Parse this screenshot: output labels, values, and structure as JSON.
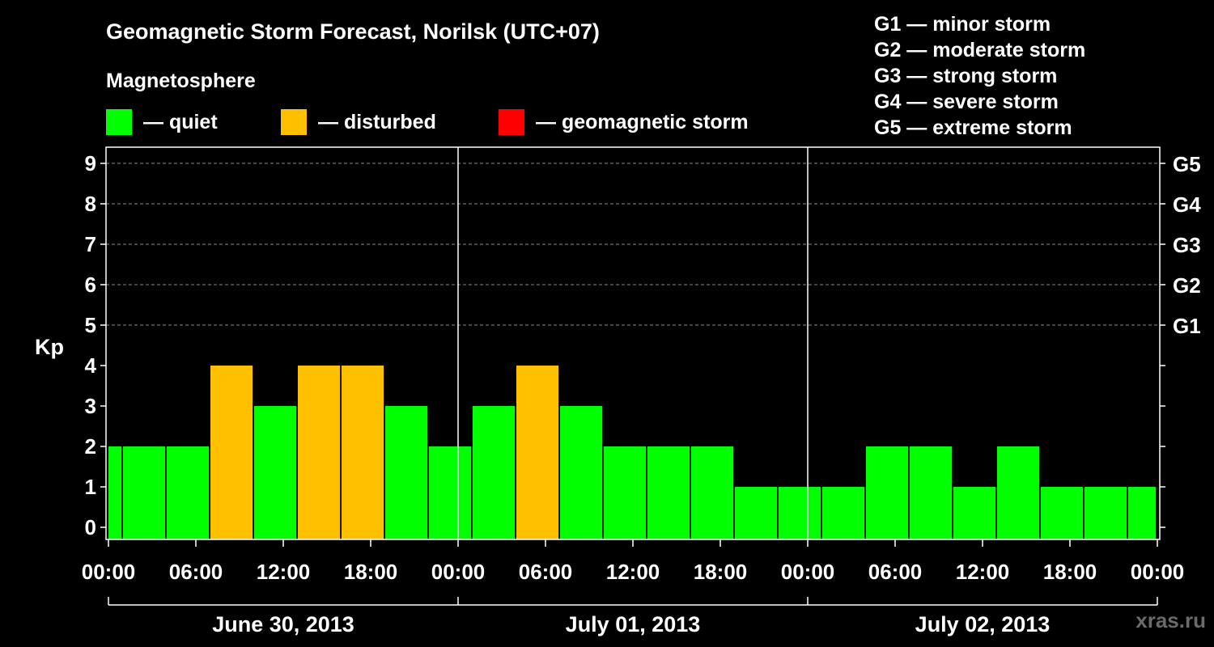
{
  "title": "Geomagnetic Storm Forecast, Norilsk (UTC+07)",
  "subtitle": "Magnetosphere",
  "legend": [
    {
      "label": "— quiet",
      "color": "#00ff00"
    },
    {
      "label": "— disturbed",
      "color": "#ffc000"
    },
    {
      "label": "— geomagnetic storm",
      "color": "#ff0000"
    }
  ],
  "g_scale": [
    "G1 — minor storm",
    "G2 — moderate storm",
    "G3 — strong storm",
    "G4 — severe storm",
    "G5 — extreme storm"
  ],
  "watermark": "xras.ru",
  "chart_data": {
    "type": "bar",
    "ylabel": "Kp",
    "ylim": [
      -0.3,
      9.4
    ],
    "yticks": [
      0,
      1,
      2,
      3,
      4,
      5,
      6,
      7,
      8,
      9
    ],
    "right_ticks": [
      {
        "value": 5,
        "label": "G1"
      },
      {
        "value": 6,
        "label": "G2"
      },
      {
        "value": 7,
        "label": "G3"
      },
      {
        "value": 8,
        "label": "G4"
      },
      {
        "value": 9,
        "label": "G5"
      }
    ],
    "x_range_hours": [
      0,
      72
    ],
    "xtick_labels": [
      "00:00",
      "06:00",
      "12:00",
      "18:00",
      "00:00",
      "06:00",
      "12:00",
      "18:00",
      "00:00",
      "06:00",
      "12:00",
      "18:00",
      "00:00"
    ],
    "dates": [
      "June 30, 2013",
      "July 01, 2013",
      "July 02, 2013"
    ],
    "grid": "dashed horizontal",
    "bars": [
      {
        "start": 0,
        "end": 0.9,
        "value": 2,
        "status": "quiet"
      },
      {
        "start": 1,
        "end": 3.9,
        "value": 2,
        "status": "quiet"
      },
      {
        "start": 4,
        "end": 6.9,
        "value": 2,
        "status": "quiet"
      },
      {
        "start": 7,
        "end": 9.9,
        "value": 4,
        "status": "disturbed"
      },
      {
        "start": 10,
        "end": 12.9,
        "value": 3,
        "status": "quiet"
      },
      {
        "start": 13,
        "end": 15.9,
        "value": 4,
        "status": "disturbed"
      },
      {
        "start": 16,
        "end": 18.9,
        "value": 4,
        "status": "disturbed"
      },
      {
        "start": 19,
        "end": 21.9,
        "value": 3,
        "status": "quiet"
      },
      {
        "start": 22,
        "end": 24.9,
        "value": 2,
        "status": "quiet"
      },
      {
        "start": 25,
        "end": 27.9,
        "value": 3,
        "status": "quiet"
      },
      {
        "start": 28,
        "end": 30.9,
        "value": 4,
        "status": "disturbed"
      },
      {
        "start": 31,
        "end": 33.9,
        "value": 3,
        "status": "quiet"
      },
      {
        "start": 34,
        "end": 36.9,
        "value": 2,
        "status": "quiet"
      },
      {
        "start": 37,
        "end": 39.9,
        "value": 2,
        "status": "quiet"
      },
      {
        "start": 40,
        "end": 42.9,
        "value": 2,
        "status": "quiet"
      },
      {
        "start": 43,
        "end": 45.9,
        "value": 1,
        "status": "quiet"
      },
      {
        "start": 46,
        "end": 48.9,
        "value": 1,
        "status": "quiet"
      },
      {
        "start": 49,
        "end": 51.9,
        "value": 1,
        "status": "quiet"
      },
      {
        "start": 52,
        "end": 54.9,
        "value": 2,
        "status": "quiet"
      },
      {
        "start": 55,
        "end": 57.9,
        "value": 2,
        "status": "quiet"
      },
      {
        "start": 58,
        "end": 60.9,
        "value": 1,
        "status": "quiet"
      },
      {
        "start": 61,
        "end": 63.9,
        "value": 2,
        "status": "quiet"
      },
      {
        "start": 64,
        "end": 66.9,
        "value": 1,
        "status": "quiet"
      },
      {
        "start": 67,
        "end": 69.9,
        "value": 1,
        "status": "quiet"
      },
      {
        "start": 70,
        "end": 71.9,
        "value": 1,
        "status": "quiet"
      }
    ],
    "colors": {
      "quiet": "#00ff00",
      "disturbed": "#ffc000",
      "storm": "#ff0000"
    }
  }
}
